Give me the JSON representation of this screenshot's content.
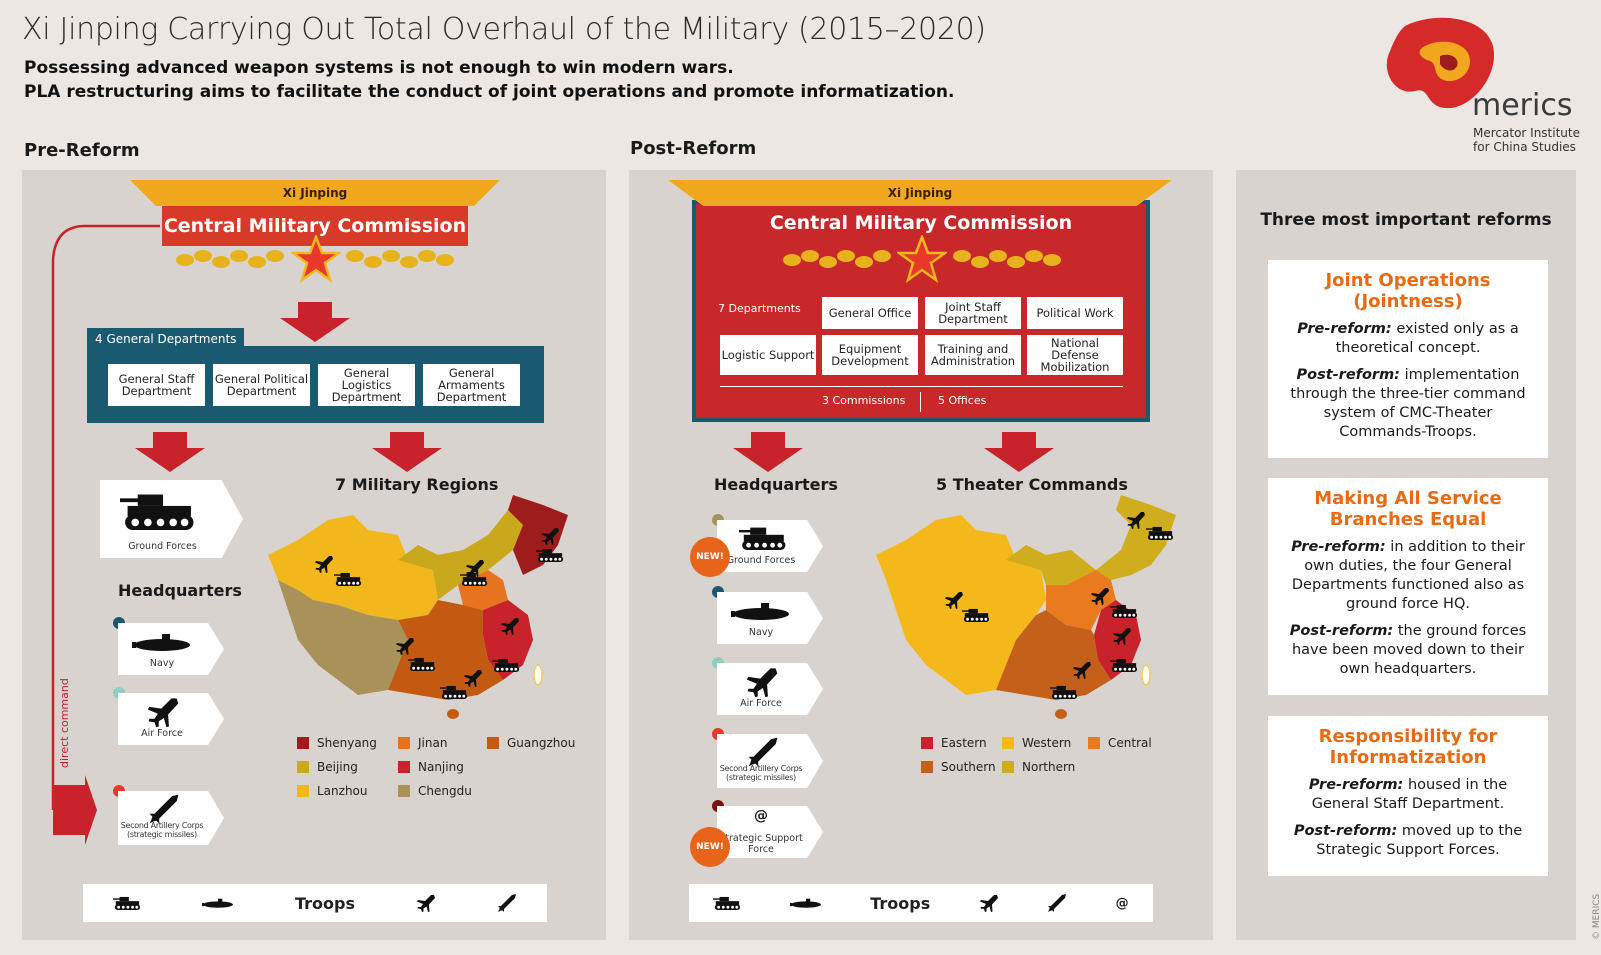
{
  "header": {
    "title": "Xi Jinping Carrying Out Total Overhaul of the Military (2015–2020)",
    "subtitle1": "Possessing advanced weapon systems is not enough to win modern wars.",
    "subtitle2": "PLA restructuring aims to facilitate the conduct of joint operations and promote informatization."
  },
  "logo": {
    "name": "merics",
    "line1": "Mercator Institute",
    "line2": "for China Studies"
  },
  "pre": {
    "heading": "Pre-Reform",
    "leader": "Xi Jinping",
    "cmc": "Central Military Commission",
    "gd_label": "4 General Departments",
    "departments": [
      "General Staff Department",
      "General Political Department",
      "General Logistics Department",
      "General Armaments Department"
    ],
    "direct_command": "direct command",
    "ground_forces": "Ground Forces",
    "hq_heading": "Headquarters",
    "navy": "Navy",
    "air_force": "Air Force",
    "artillery": "Second Artillery Corps (strategic missiles)",
    "regions_heading": "7 Military Regions",
    "legend": [
      "Shenyang",
      "Jinan",
      "Guangzhou",
      "Beijing",
      "Nanjing",
      "Lanzhou",
      "Chengdu"
    ],
    "troops": "Troops"
  },
  "post": {
    "heading": "Post-Reform",
    "leader": "Xi Jinping",
    "cmc": "Central Military Commission",
    "dept_label": "7 Departments",
    "departments": [
      "General Office",
      "Joint Staff Department",
      "Political Work",
      "Logistic Support",
      "Equipment Development",
      "Training and Administration",
      "National Defense Mobilization"
    ],
    "commissions": "3 Commissions",
    "offices": "5 Offices",
    "hq_heading": "Headquarters",
    "theater_heading": "5 Theater Commands",
    "ground_forces": "Ground Forces",
    "navy": "Navy",
    "air_force": "Air Force",
    "rocket": "Second Artillery Corps (strategic missiles)",
    "ssf": "Strategic Support Force",
    "ssf_symbol": "@",
    "new": "NEW!",
    "legend": [
      "Eastern",
      "Western",
      "Central",
      "Southern",
      "Northern"
    ],
    "troops": "Troops",
    "troops_symbol": "@"
  },
  "reforms": {
    "heading": "Three most important reforms",
    "cards": [
      {
        "title": "Joint Operations (Jointness)",
        "pre_label": "Pre-reform:",
        "pre_text": "existed only as a theoretical concept.",
        "post_label": "Post-reform:",
        "post_text": "implementation through the three-tier command system of CMC-Theater Commands-Troops."
      },
      {
        "title": "Making All Service Branches Equal",
        "pre_label": "Pre-reform:",
        "pre_text": "in addition to their own duties, the four General Departments functioned also as ground force HQ.",
        "post_label": "Post-reform:",
        "post_text": "the ground forces have been moved down to their own headquarters."
      },
      {
        "title": "Responsibility for Informatization",
        "pre_label": "Pre-reform:",
        "pre_text": "housed in the General Staff Department.",
        "post_label": "Post-reform:",
        "post_text": "moved up to the Strategic Support Forces."
      }
    ]
  },
  "copyright": "© MERICS",
  "colors": {
    "shenyang": "#9e1c1c",
    "jinan": "#e8731e",
    "guangzhou": "#c45a12",
    "beijing": "#c9a81c",
    "nanjing": "#c8222a",
    "lanzhou": "#f2b71c",
    "chengdu": "#a8925a",
    "eastern": "#c8222a",
    "western": "#f4b81a",
    "central": "#ea7a1e",
    "southern": "#c4601a",
    "northern": "#cfad1c"
  }
}
